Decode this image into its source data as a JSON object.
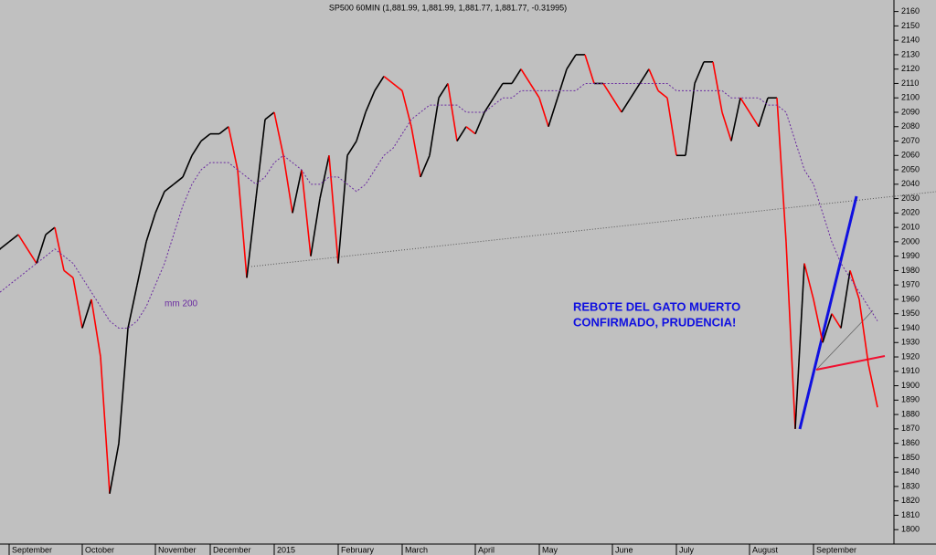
{
  "chart_data": {
    "type": "line",
    "title": "SP500 60MIN (1,881.99, 1,881.99, 1,881.77, 1,881.77, -0.31995)",
    "annotations": [
      "REBOTE DEL GATO MUERTO",
      "CONFIRMADO, PRUDENCIA!",
      "mm 200"
    ],
    "categories": [
      null,
      "September",
      null,
      null,
      null,
      null,
      null,
      null,
      null,
      "October",
      null,
      null,
      null,
      null,
      null,
      null,
      null,
      "November",
      null,
      null,
      null,
      null,
      null,
      "December",
      null,
      null,
      null,
      null,
      null,
      null,
      "2015",
      null,
      null,
      null,
      null,
      null,
      null,
      "February",
      null,
      null,
      null,
      null,
      null,
      null,
      "March",
      null,
      null,
      null,
      null,
      null,
      null,
      null,
      "April",
      null,
      null,
      null,
      null,
      null,
      null,
      "May",
      null,
      null,
      null,
      null,
      null,
      null,
      null,
      "June",
      null,
      null,
      null,
      null,
      null,
      null,
      "July",
      null,
      null,
      null,
      null,
      null,
      null,
      null,
      "August",
      null,
      null,
      null,
      null,
      null,
      null,
      "September",
      null,
      null,
      null,
      null,
      null,
      null,
      null
    ],
    "series": [
      {
        "color": "#000000",
        "down_color": "#ff0000",
        "values": [
          1995,
          2000,
          2005,
          1995,
          1985,
          2005,
          2010,
          1980,
          1975,
          1940,
          1960,
          1920,
          1825,
          1860,
          1940,
          1970,
          2000,
          2020,
          2035,
          2040,
          2045,
          2060,
          2070,
          2075,
          2075,
          2080,
          2050,
          1975,
          2030,
          2085,
          2090,
          2060,
          2020,
          2050,
          1990,
          2030,
          2060,
          1985,
          2060,
          2070,
          2090,
          2105,
          2115,
          2110,
          2105,
          2080,
          2045,
          2060,
          2100,
          2110,
          2070,
          2080,
          2075,
          2090,
          2100,
          2110,
          2110,
          2120,
          2110,
          2100,
          2080,
          2100,
          2120,
          2130,
          2130,
          2110,
          2110,
          2100,
          2090,
          2100,
          2110,
          2120,
          2105,
          2100,
          2060,
          2060,
          2110,
          2125,
          2125,
          2090,
          2070,
          2100,
          2090,
          2080,
          2100,
          2100,
          2000,
          1870,
          1985,
          1960,
          1930,
          1950,
          1940,
          1980,
          1960,
          1915,
          1885
        ]
      },
      {
        "color": "#6a2aa0",
        "dashed": true,
        "values": [
          1965,
          1970,
          1975,
          1980,
          1985,
          1990,
          1995,
          1990,
          1985,
          1975,
          1965,
          1955,
          1945,
          1940,
          1940,
          1945,
          1955,
          1970,
          1985,
          2005,
          2025,
          2040,
          2050,
          2055,
          2055,
          2055,
          2050,
          2045,
          2040,
          2045,
          2055,
          2060,
          2055,
          2050,
          2040,
          2040,
          2045,
          2045,
          2040,
          2035,
          2040,
          2050,
          2060,
          2065,
          2075,
          2085,
          2090,
          2095,
          2095,
          2095,
          2095,
          2090,
          2090,
          2090,
          2095,
          2100,
          2100,
          2105,
          2105,
          2105,
          2105,
          2105,
          2105,
          2105,
          2110,
          2110,
          2110,
          2110,
          2110,
          2110,
          2110,
          2110,
          2110,
          2110,
          2105,
          2105,
          2105,
          2105,
          2105,
          2105,
          2100,
          2100,
          2100,
          2100,
          2095,
          2095,
          2090,
          2070,
          2050,
          2040,
          2020,
          2000,
          1985,
          1975,
          1965,
          1955,
          1945
        ]
      }
    ],
    "ylim": [
      1790,
      2168
    ],
    "yticks": [
      1800,
      1810,
      1820,
      1830,
      1840,
      1850,
      1860,
      1870,
      1880,
      1890,
      1900,
      1910,
      1920,
      1930,
      1940,
      1950,
      1960,
      1970,
      1980,
      1990,
      2000,
      2010,
      2020,
      2030,
      2040,
      2050,
      2060,
      2070,
      2080,
      2090,
      2100,
      2110,
      2120,
      2130,
      2140,
      2150,
      2160
    ],
    "grid": false
  }
}
